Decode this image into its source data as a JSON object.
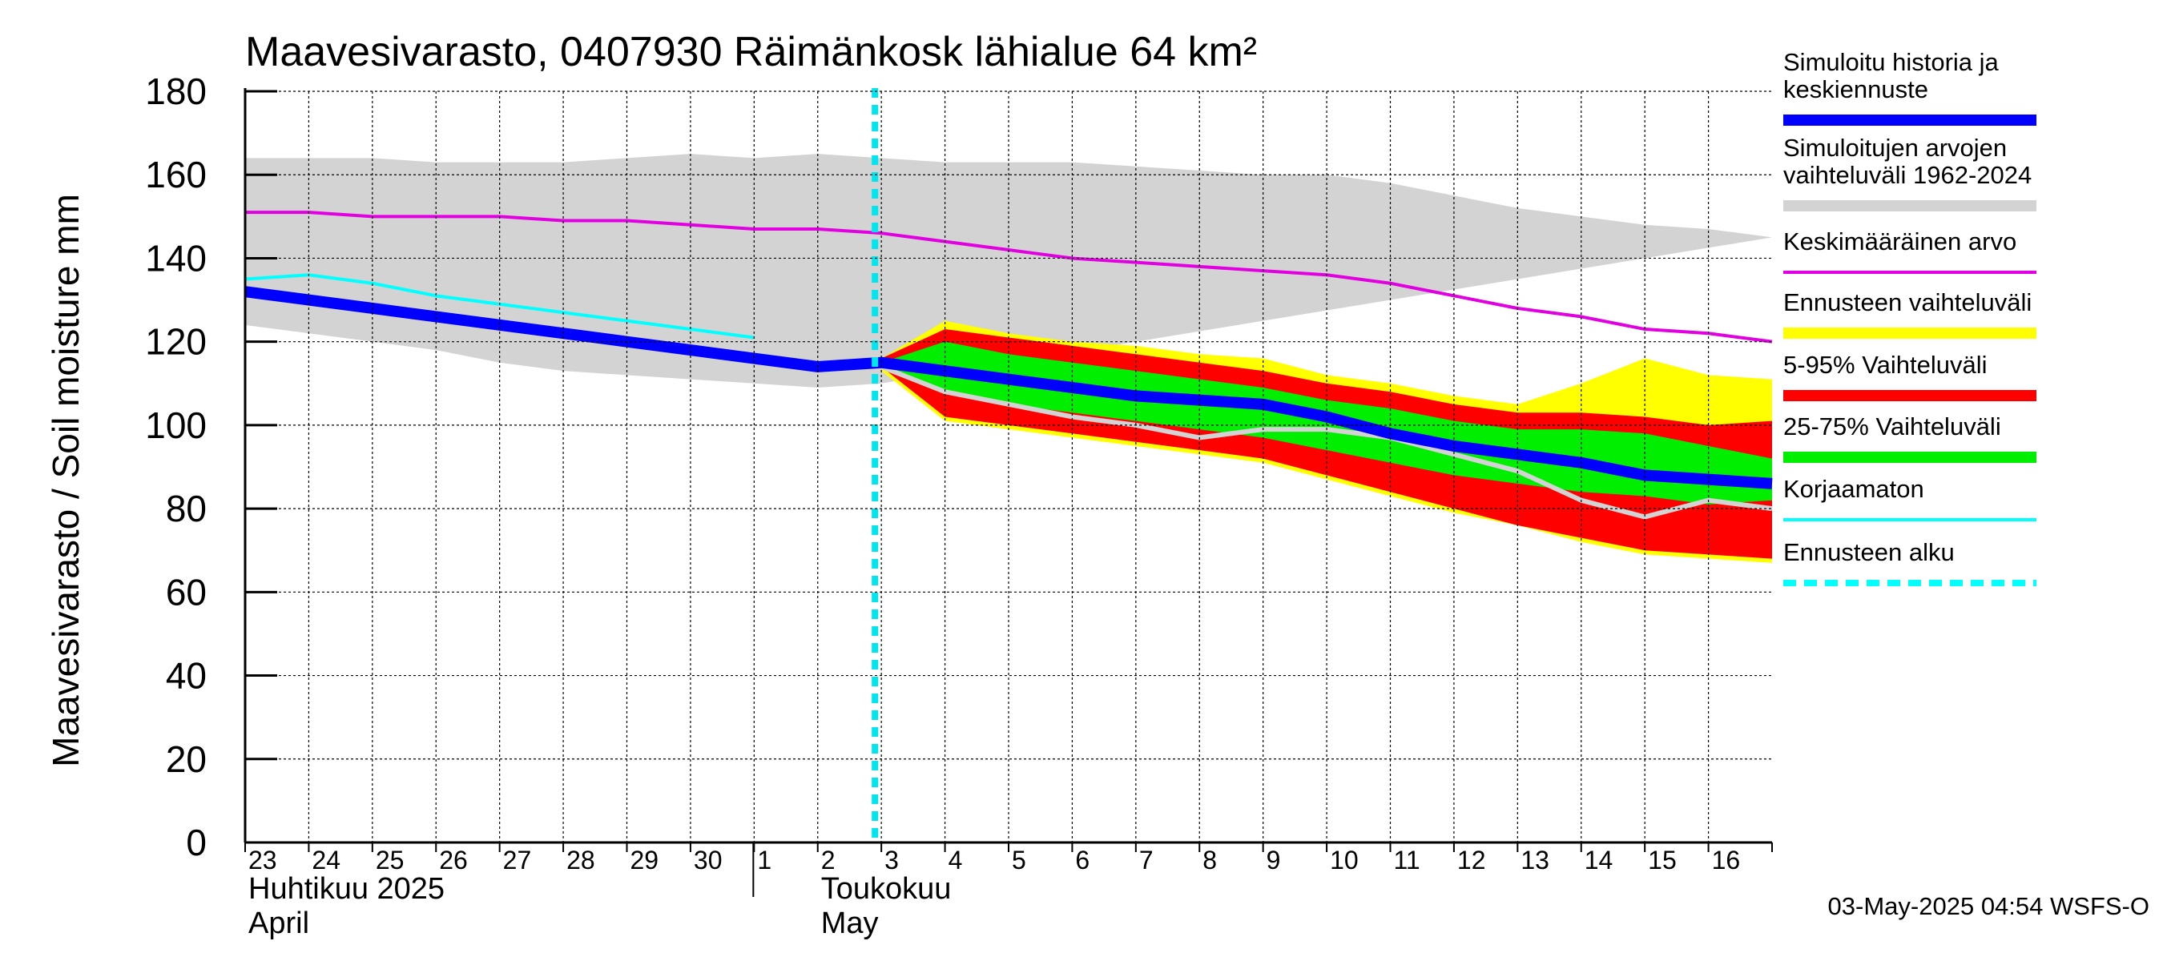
{
  "chart_data": {
    "type": "area",
    "title": "Maavesivarasto, 0407930 Räimänkosk lähialue 64 km²",
    "ylabel": "Maavesivarasto / Soil moisture   mm",
    "ylim": [
      0,
      180
    ],
    "yticks": [
      0,
      20,
      40,
      60,
      80,
      100,
      120,
      140,
      160,
      180
    ],
    "grid": true,
    "legend_position": "right",
    "x": [
      "2025-04-23",
      "2025-04-24",
      "2025-04-25",
      "2025-04-26",
      "2025-04-27",
      "2025-04-28",
      "2025-04-29",
      "2025-04-30",
      "2025-05-01",
      "2025-05-02",
      "2025-05-03",
      "2025-05-04",
      "2025-05-05",
      "2025-05-06",
      "2025-05-07",
      "2025-05-08",
      "2025-05-09",
      "2025-05-10",
      "2025-05-11",
      "2025-05-12",
      "2025-05-13",
      "2025-05-14",
      "2025-05-15",
      "2025-05-16",
      "2025-05-17"
    ],
    "x_tick_labels": [
      "23",
      "24",
      "25",
      "26",
      "27",
      "28",
      "29",
      "30",
      "1",
      "2",
      "3",
      "4",
      "5",
      "6",
      "7",
      "8",
      "9",
      "10",
      "11",
      "12",
      "13",
      "14",
      "15",
      "16"
    ],
    "month_labels": [
      {
        "line1": "Huhtikuu  2025",
        "line2": "April",
        "date": "2025-04-23"
      },
      {
        "line1": "Toukokuu",
        "line2": "May",
        "date": "2025-05-02"
      }
    ],
    "month_separator_date": "2025-05-01",
    "forecast_start": "2025-05-03",
    "series": [
      {
        "name": "Simuloitujen arvojen vaihteluväli 1962-2024",
        "kind": "band",
        "color": "#d3d3d3",
        "upper": [
          164,
          164,
          164,
          163,
          163,
          163,
          164,
          165,
          164,
          165,
          164,
          163,
          163,
          163,
          162,
          161,
          160,
          160,
          158,
          155,
          152,
          150,
          148,
          147,
          145
        ],
        "lower": [
          124,
          122,
          120,
          118,
          115,
          113,
          112,
          111,
          110,
          109,
          110,
          null,
          null,
          null,
          null,
          null,
          null,
          null,
          null,
          null,
          null,
          null,
          null,
          null,
          null
        ]
      },
      {
        "name": "Ennusteen vaihteluväli",
        "kind": "band",
        "color": "#ffff00",
        "upper": [
          null,
          null,
          null,
          null,
          null,
          null,
          null,
          null,
          null,
          null,
          116,
          125,
          122,
          120,
          119,
          117,
          116,
          112,
          110,
          107,
          105,
          110,
          116,
          112,
          111
        ],
        "lower": [
          null,
          null,
          null,
          null,
          null,
          null,
          null,
          null,
          null,
          null,
          113,
          101,
          99,
          97,
          95,
          93,
          91,
          87,
          83,
          79,
          76,
          72,
          69,
          68,
          67
        ]
      },
      {
        "name": "5-95% Vaihteluväli",
        "kind": "band",
        "color": "#ff0000",
        "upper": [
          null,
          null,
          null,
          null,
          null,
          null,
          null,
          null,
          null,
          null,
          116,
          123,
          121,
          119,
          117,
          115,
          113,
          110,
          108,
          105,
          103,
          103,
          102,
          100,
          101
        ],
        "lower": [
          null,
          null,
          null,
          null,
          null,
          null,
          null,
          null,
          null,
          null,
          114,
          102,
          100,
          98,
          96,
          94,
          92,
          88,
          84,
          80,
          76,
          73,
          70,
          69,
          68
        ]
      },
      {
        "name": "25-75% Vaihteluväli",
        "kind": "band",
        "color": "#00ee00",
        "upper": [
          null,
          null,
          null,
          null,
          null,
          null,
          null,
          null,
          null,
          null,
          115,
          120,
          117,
          115,
          113,
          111,
          109,
          106,
          104,
          101,
          99,
          99,
          98,
          95,
          92
        ],
        "lower": [
          null,
          null,
          null,
          null,
          null,
          null,
          null,
          null,
          null,
          null,
          114,
          108,
          105,
          103,
          101,
          99,
          97,
          94,
          91,
          88,
          86,
          84,
          83,
          81,
          82
        ]
      },
      {
        "name": "Keskimääräinen arvo",
        "kind": "line",
        "color": "#e000e0",
        "values": [
          151,
          151,
          150,
          150,
          150,
          149,
          149,
          148,
          147,
          147,
          146,
          144,
          142,
          140,
          139,
          138,
          137,
          136,
          134,
          131,
          128,
          126,
          123,
          122,
          120
        ]
      },
      {
        "name": "Korjaamaton",
        "kind": "line",
        "color": "#00ffff",
        "values": [
          135,
          136,
          134,
          131,
          129,
          127,
          125,
          123,
          121,
          null,
          null,
          null,
          null,
          null,
          null,
          null,
          null,
          null,
          null,
          null,
          null,
          null,
          null,
          null,
          null
        ]
      },
      {
        "name": "",
        "kind": "line",
        "color": "#d3d3d3",
        "values": [
          null,
          null,
          null,
          null,
          null,
          null,
          null,
          null,
          null,
          null,
          114,
          108,
          105,
          102,
          100,
          97,
          99,
          99,
          97,
          93,
          89,
          82,
          78,
          82,
          80
        ]
      },
      {
        "name": "Simuloitu historia ja keskiennuste",
        "kind": "line",
        "color": "#0000ff",
        "values": [
          132,
          130,
          128,
          126,
          124,
          122,
          120,
          118,
          116,
          114,
          115,
          113,
          111,
          109,
          107,
          106,
          105,
          102,
          98,
          95,
          93,
          91,
          88,
          87,
          86
        ]
      }
    ]
  },
  "legend": [
    {
      "label": "Simuloitu historia ja\nkeskiennuste",
      "color": "#0000ff",
      "style": "thick"
    },
    {
      "label": "Simuloitujen arvojen\nvaihteluväli 1962-2024",
      "color": "#d3d3d3",
      "style": "thick"
    },
    {
      "label": "Keskimääräinen arvo",
      "color": "#e000e0",
      "style": "thin"
    },
    {
      "label": "Ennusteen vaihteluväli",
      "color": "#ffff00",
      "style": "thick"
    },
    {
      "label": "5-95% Vaihteluväli",
      "color": "#ff0000",
      "style": "thick"
    },
    {
      "label": "25-75% Vaihteluväli",
      "color": "#00ee00",
      "style": "thick"
    },
    {
      "label": "Korjaamaton",
      "color": "#00ffff",
      "style": "thin"
    },
    {
      "label": "Ennusteen alku",
      "color": "#00ffff",
      "style": "dashed"
    }
  ],
  "footer": "03-May-2025 04:54 WSFS-O"
}
